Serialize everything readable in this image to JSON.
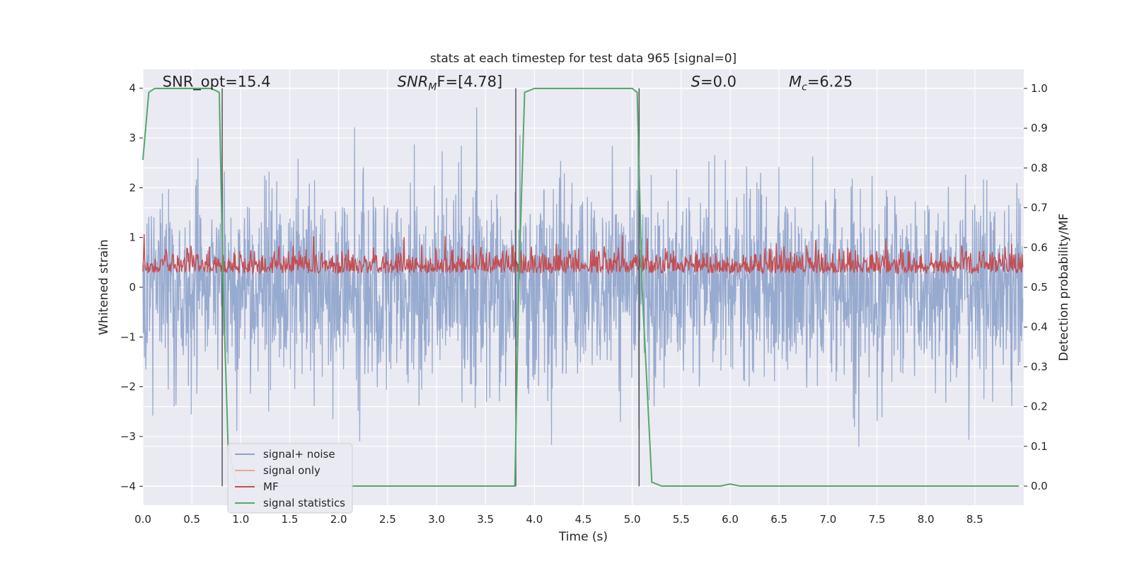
{
  "chart_data": {
    "type": "line",
    "title": "stats at each timestep for test data 965 [signal=0]",
    "xlabel": "Time (s)",
    "ylabel": "Whitened strain",
    "ylabel_right": "Detection probability/MF",
    "xlim": [
      0.0,
      9.0
    ],
    "ylim": [
      -4.38,
      4.38
    ],
    "ylim_right": [
      -0.048,
      1.048
    ],
    "x_ticks": [
      "0.0",
      "0.5",
      "1.0",
      "1.5",
      "2.0",
      "2.5",
      "3.0",
      "3.5",
      "4.0",
      "4.5",
      "5.0",
      "5.5",
      "6.0",
      "6.5",
      "7.0",
      "7.5",
      "8.0",
      "8.5"
    ],
    "y_ticks": [
      "−4",
      "−3",
      "−2",
      "−1",
      "0",
      "1",
      "2",
      "3",
      "4"
    ],
    "y_ticks_right": [
      "0.0",
      "0.1",
      "0.2",
      "0.3",
      "0.4",
      "0.5",
      "0.6",
      "0.7",
      "0.8",
      "0.9",
      "1.0"
    ],
    "grid": true,
    "legend_placement": "lower-left",
    "annotations": [
      {
        "text": "SNR_opt=15.4"
      },
      {
        "text": "SNR",
        "sub": "M",
        "tail": "F=[4.78]",
        "italic": true
      },
      {
        "text": "S",
        "tail": "=0.0",
        "italic": true
      },
      {
        "text": "M",
        "sub": "c",
        "tail": "=6.25",
        "italic": true
      }
    ],
    "vlines_x": [
      0.81,
      3.81,
      5.07
    ],
    "series": [
      {
        "name": "signal+ noise",
        "color": "#8ea3cb",
        "axis": "left",
        "amplitude_envelope": [
          -4.0,
          4.0
        ],
        "typical_range": [
          -2.0,
          2.0
        ]
      },
      {
        "name": "signal only",
        "color": "#e8a88f",
        "axis": "left",
        "values": []
      },
      {
        "name": "MF",
        "color": "#c44e52",
        "axis": "right",
        "typical_range": [
          0.5,
          0.62
        ],
        "peak": 0.64
      },
      {
        "name": "signal statistics",
        "color": "#55a868",
        "axis": "right",
        "x": [
          0.0,
          0.06,
          0.12,
          0.2,
          0.5,
          0.7,
          0.78,
          0.82,
          0.87,
          0.95,
          1.2,
          2.0,
          3.0,
          3.7,
          3.8,
          3.84,
          3.9,
          4.0,
          5.0,
          5.05,
          5.1,
          5.2,
          5.3,
          5.9,
          6.0,
          6.1,
          8.95
        ],
        "y": [
          0.82,
          0.99,
          1.0,
          1.0,
          1.0,
          1.0,
          0.99,
          0.5,
          0.1,
          0.01,
          0.0,
          0.0,
          0.0,
          0.0,
          0.0,
          0.5,
          0.99,
          1.0,
          1.0,
          0.99,
          0.5,
          0.01,
          0.0,
          0.0,
          0.005,
          0.0,
          0.0
        ]
      }
    ]
  },
  "colors": {
    "background": "#eaeaf2",
    "grid": "#ffffff",
    "vline": "#555555"
  }
}
